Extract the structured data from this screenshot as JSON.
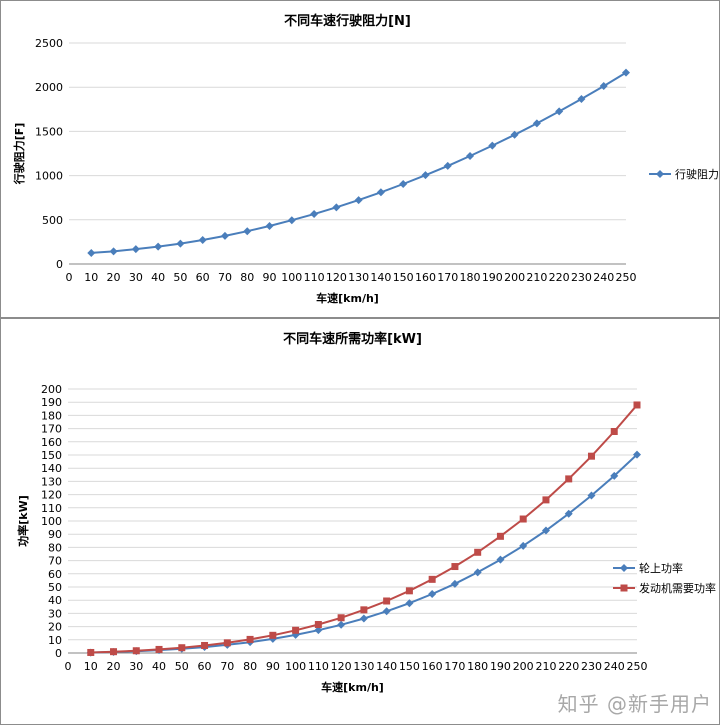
{
  "chart_data": [
    {
      "type": "line",
      "title": "不同车速行驶阻力[N]",
      "xlabel": "车速[km/h]",
      "ylabel": "行驶阻力[F]",
      "xlim": [
        0,
        250
      ],
      "ylim": [
        0,
        2500
      ],
      "x_ticks": [
        "0",
        "10",
        "20",
        "30",
        "40",
        "50",
        "60",
        "70",
        "80",
        "90",
        "100",
        "110",
        "120",
        "130",
        "140",
        "150",
        "160",
        "170",
        "180",
        "190",
        "200",
        "210",
        "220",
        "230",
        "240",
        "250"
      ],
      "y_ticks": [
        "0",
        "500",
        "1000",
        "1500",
        "2000",
        "2500"
      ],
      "grid": true,
      "legend_position": "right",
      "x": [
        10,
        20,
        30,
        40,
        50,
        60,
        70,
        80,
        90,
        100,
        110,
        120,
        130,
        140,
        150,
        160,
        170,
        180,
        190,
        200,
        210,
        220,
        230,
        240,
        250
      ],
      "series": [
        {
          "name": "行驶阻力",
          "color": "#4a7ebb",
          "marker": "diamond",
          "values": [
            125,
            143,
            168,
            197,
            231,
            272,
            318,
            371,
            430,
            495,
            565,
            641,
            723,
            811,
            905,
            1005,
            1110,
            1222,
            1339,
            1462,
            1591,
            1726,
            1867,
            2013,
            2165
          ]
        }
      ]
    },
    {
      "type": "line",
      "title": "不同车速所需功率[kW]",
      "xlabel": "车速[km/h]",
      "ylabel": "功率[kW]",
      "xlim": [
        0,
        250
      ],
      "ylim": [
        0,
        200
      ],
      "x_ticks": [
        "0",
        "10",
        "20",
        "30",
        "40",
        "50",
        "60",
        "70",
        "80",
        "90",
        "100",
        "110",
        "120",
        "130",
        "140",
        "150",
        "160",
        "170",
        "180",
        "190",
        "200",
        "210",
        "220",
        "230",
        "240",
        "250"
      ],
      "y_ticks": [
        "0",
        "10",
        "20",
        "30",
        "40",
        "50",
        "60",
        "70",
        "80",
        "90",
        "100",
        "110",
        "120",
        "130",
        "140",
        "150",
        "160",
        "170",
        "180",
        "190",
        "200"
      ],
      "grid": true,
      "legend_position": "right",
      "x": [
        10,
        20,
        30,
        40,
        50,
        60,
        70,
        80,
        90,
        100,
        110,
        120,
        130,
        140,
        150,
        160,
        170,
        180,
        190,
        200,
        210,
        220,
        230,
        240,
        250
      ],
      "series": [
        {
          "name": "轮上功率",
          "color": "#4a7ebb",
          "marker": "diamond",
          "values": [
            0.3,
            0.8,
            1.4,
            2.2,
            3.2,
            4.5,
            6.2,
            8.2,
            10.7,
            13.7,
            17.3,
            21.4,
            26.1,
            31.6,
            37.7,
            44.7,
            52.4,
            61.1,
            70.7,
            81.2,
            92.8,
            105.5,
            119.3,
            134.2,
            150.3
          ]
        },
        {
          "name": "发动机需要功率",
          "color": "#be4b48",
          "marker": "square",
          "values": [
            0.4,
            1.0,
            1.7,
            2.7,
            4.0,
            5.7,
            7.7,
            10.3,
            13.4,
            17.2,
            21.6,
            26.7,
            32.7,
            39.4,
            47.1,
            55.8,
            65.5,
            76.3,
            88.4,
            101.5,
            116.0,
            131.9,
            149.1,
            167.8,
            187.9
          ]
        }
      ]
    }
  ],
  "watermark": "知乎 @新手用户"
}
